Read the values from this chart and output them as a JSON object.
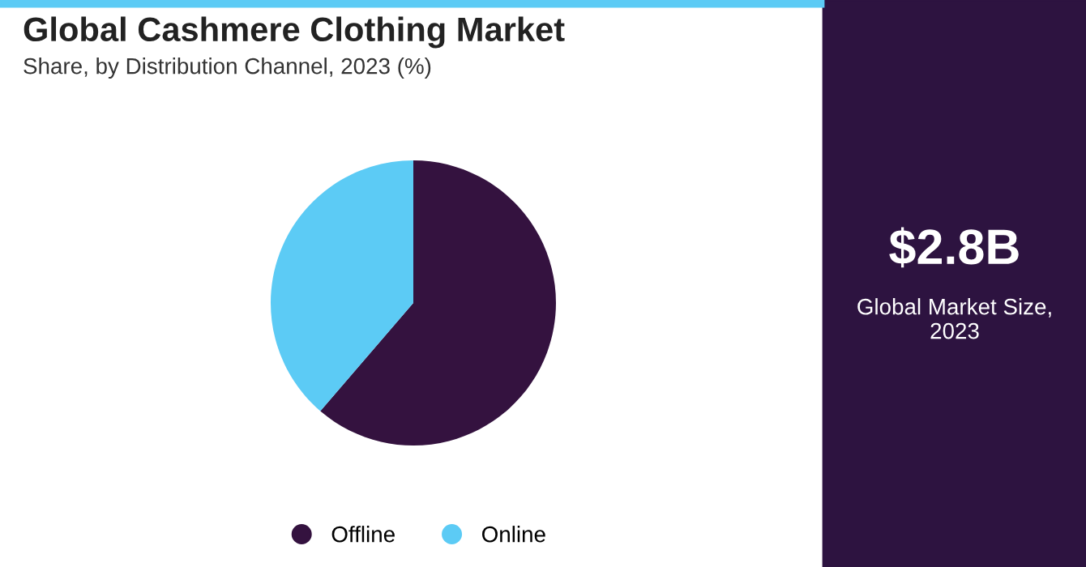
{
  "chart_data": {
    "type": "pie",
    "title": "Global Cashmere Clothing Market",
    "subtitle": "Share, by Distribution Channel, 2023 (%)",
    "categories": [
      "Offline",
      "Online"
    ],
    "values": [
      61.3,
      38.7
    ],
    "colors": [
      "#34123f",
      "#5ccbf5"
    ],
    "legend": "bottom",
    "annotations": [
      "$2.8B",
      "Global Market Size,\n2023"
    ]
  }
}
